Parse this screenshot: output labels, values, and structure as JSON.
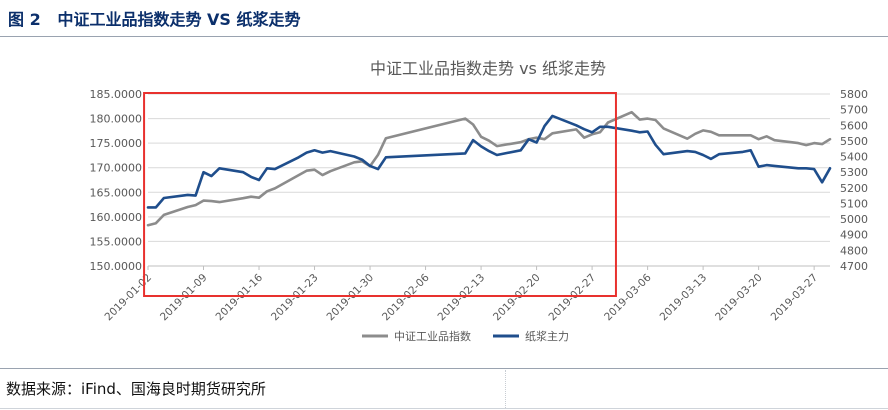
{
  "figure": {
    "label": "图 2",
    "title": "中证工业品指数走势 VS 纸浆走势"
  },
  "source": "数据来源：iFind、国海良时期货研究所",
  "chart_data": {
    "type": "line",
    "title": "中证工业品指数走势 vs 纸浆走势",
    "x_ticks": [
      "2019-01-02",
      "2019-01-09",
      "2019-01-16",
      "2019-01-23",
      "2019-01-30",
      "2019-02-06",
      "2019-02-13",
      "2019-02-20",
      "2019-02-27",
      "2019-03-06",
      "2019-03-13",
      "2019-03-20",
      "2019-03-27"
    ],
    "x_range": [
      "2019-01-02",
      "2019-03-29"
    ],
    "y_left": {
      "min": 150,
      "max": 185,
      "step": 5,
      "tick_labels": [
        "150.0000",
        "155.0000",
        "160.0000",
        "165.0000",
        "170.0000",
        "175.0000",
        "180.0000",
        "185.0000"
      ]
    },
    "y_right": {
      "min": 4700,
      "max": 5800,
      "step": 100,
      "tick_labels": [
        "4700",
        "4800",
        "4900",
        "5000",
        "5100",
        "5200",
        "5300",
        "5400",
        "5500",
        "5600",
        "5700",
        "5800"
      ]
    },
    "legend_position": "bottom",
    "series": [
      {
        "name": "中证工业品指数",
        "axis": "left",
        "color": "#8c8c8c",
        "points": [
          [
            "2019-01-02",
            158.3
          ],
          [
            "2019-01-03",
            158.7
          ],
          [
            "2019-01-04",
            160.4
          ],
          [
            "2019-01-07",
            162.0
          ],
          [
            "2019-01-08",
            162.4
          ],
          [
            "2019-01-09",
            163.3
          ],
          [
            "2019-01-10",
            163.2
          ],
          [
            "2019-01-11",
            163.0
          ],
          [
            "2019-01-14",
            163.8
          ],
          [
            "2019-01-15",
            164.1
          ],
          [
            "2019-01-16",
            163.9
          ],
          [
            "2019-01-17",
            165.2
          ],
          [
            "2019-01-18",
            165.8
          ],
          [
            "2019-01-21",
            168.5
          ],
          [
            "2019-01-22",
            169.4
          ],
          [
            "2019-01-23",
            169.6
          ],
          [
            "2019-01-24",
            168.5
          ],
          [
            "2019-01-25",
            169.3
          ],
          [
            "2019-01-28",
            171.1
          ],
          [
            "2019-01-29",
            171.3
          ],
          [
            "2019-01-30",
            170.3
          ],
          [
            "2019-01-31",
            172.6
          ],
          [
            "2019-02-01",
            176.0
          ],
          [
            "2019-02-11",
            180.0
          ],
          [
            "2019-02-12",
            178.8
          ],
          [
            "2019-02-13",
            176.3
          ],
          [
            "2019-02-14",
            175.5
          ],
          [
            "2019-02-15",
            174.4
          ],
          [
            "2019-02-18",
            175.2
          ],
          [
            "2019-02-19",
            175.8
          ],
          [
            "2019-02-20",
            176.1
          ],
          [
            "2019-02-21",
            175.8
          ],
          [
            "2019-02-22",
            177.0
          ],
          [
            "2019-02-25",
            177.8
          ],
          [
            "2019-02-26",
            176.1
          ],
          [
            "2019-02-27",
            176.8
          ],
          [
            "2019-02-28",
            177.2
          ],
          [
            "2019-03-01",
            179.2
          ],
          [
            "2019-03-04",
            181.3
          ],
          [
            "2019-03-05",
            179.8
          ],
          [
            "2019-03-06",
            180.0
          ],
          [
            "2019-03-07",
            179.7
          ],
          [
            "2019-03-08",
            178.0
          ],
          [
            "2019-03-11",
            175.9
          ],
          [
            "2019-03-12",
            176.9
          ],
          [
            "2019-03-13",
            177.6
          ],
          [
            "2019-03-14",
            177.3
          ],
          [
            "2019-03-15",
            176.6
          ],
          [
            "2019-03-18",
            176.6
          ],
          [
            "2019-03-19",
            176.6
          ],
          [
            "2019-03-20",
            175.8
          ],
          [
            "2019-03-21",
            176.4
          ],
          [
            "2019-03-22",
            175.6
          ],
          [
            "2019-03-25",
            175.0
          ],
          [
            "2019-03-26",
            174.6
          ],
          [
            "2019-03-27",
            175.0
          ],
          [
            "2019-03-28",
            174.8
          ],
          [
            "2019-03-29",
            175.8
          ]
        ]
      },
      {
        "name": "纸浆主力",
        "axis": "right",
        "color": "#1f4e8c",
        "points": [
          [
            "2019-01-02",
            5075
          ],
          [
            "2019-01-03",
            5075
          ],
          [
            "2019-01-04",
            5135
          ],
          [
            "2019-01-07",
            5155
          ],
          [
            "2019-01-08",
            5150
          ],
          [
            "2019-01-09",
            5300
          ],
          [
            "2019-01-10",
            5275
          ],
          [
            "2019-01-11",
            5325
          ],
          [
            "2019-01-14",
            5300
          ],
          [
            "2019-01-15",
            5270
          ],
          [
            "2019-01-16",
            5250
          ],
          [
            "2019-01-17",
            5325
          ],
          [
            "2019-01-18",
            5320
          ],
          [
            "2019-01-21",
            5395
          ],
          [
            "2019-01-22",
            5425
          ],
          [
            "2019-01-23",
            5440
          ],
          [
            "2019-01-24",
            5425
          ],
          [
            "2019-01-25",
            5435
          ],
          [
            "2019-01-28",
            5400
          ],
          [
            "2019-01-29",
            5380
          ],
          [
            "2019-01-30",
            5340
          ],
          [
            "2019-01-31",
            5320
          ],
          [
            "2019-02-01",
            5395
          ],
          [
            "2019-02-11",
            5420
          ],
          [
            "2019-02-12",
            5505
          ],
          [
            "2019-02-13",
            5465
          ],
          [
            "2019-02-14",
            5435
          ],
          [
            "2019-02-15",
            5410
          ],
          [
            "2019-02-18",
            5440
          ],
          [
            "2019-02-19",
            5510
          ],
          [
            "2019-02-20",
            5490
          ],
          [
            "2019-02-21",
            5595
          ],
          [
            "2019-02-22",
            5660
          ],
          [
            "2019-02-25",
            5600
          ],
          [
            "2019-02-26",
            5575
          ],
          [
            "2019-02-27",
            5555
          ],
          [
            "2019-02-28",
            5590
          ],
          [
            "2019-03-01",
            5590
          ],
          [
            "2019-03-04",
            5565
          ],
          [
            "2019-03-05",
            5555
          ],
          [
            "2019-03-06",
            5560
          ],
          [
            "2019-03-07",
            5475
          ],
          [
            "2019-03-08",
            5415
          ],
          [
            "2019-03-11",
            5435
          ],
          [
            "2019-03-12",
            5430
          ],
          [
            "2019-03-13",
            5410
          ],
          [
            "2019-03-14",
            5385
          ],
          [
            "2019-03-15",
            5415
          ],
          [
            "2019-03-18",
            5430
          ],
          [
            "2019-03-19",
            5440
          ],
          [
            "2019-03-20",
            5335
          ],
          [
            "2019-03-21",
            5345
          ],
          [
            "2019-03-22",
            5340
          ],
          [
            "2019-03-25",
            5325
          ],
          [
            "2019-03-26",
            5325
          ],
          [
            "2019-03-27",
            5320
          ],
          [
            "2019-03-28",
            5235
          ],
          [
            "2019-03-29",
            5325
          ]
        ]
      }
    ],
    "highlight_box": {
      "x_from": "2019-01-01",
      "x_to": "2019-03-01",
      "color": "#e8312e"
    }
  }
}
